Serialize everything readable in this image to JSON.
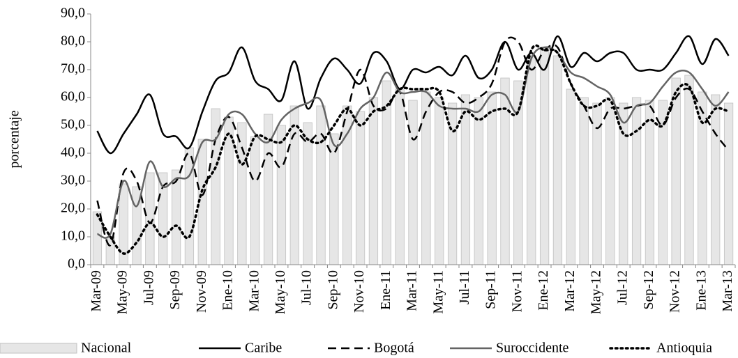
{
  "chart_data": {
    "type": "bar",
    "y_label": "porcentaje",
    "categories": [
      "Mar-09",
      null,
      "May-09",
      null,
      "Jul-09",
      null,
      "Sep-09",
      null,
      "Nov-09",
      null,
      "Ene-10",
      null,
      "Mar-10",
      null,
      "May-10",
      null,
      "Jul-10",
      null,
      "Sep-10",
      null,
      "Nov-10",
      null,
      "Ene-11",
      null,
      "Mar-11",
      null,
      "May-11",
      null,
      "Jul-11",
      null,
      "Sep-11",
      null,
      "Nov-11",
      null,
      "Ene-12",
      null,
      "Mar-12",
      null,
      "May-12",
      null,
      "Jul-12",
      null,
      "Sep-12",
      null,
      "Nov-12",
      null,
      "Ene-13",
      null,
      "Mar-13"
    ],
    "ylim": [
      0,
      90
    ],
    "yticks": [
      {
        "value": 0,
        "label": "0,0"
      },
      {
        "value": 10,
        "label": "10,0"
      },
      {
        "value": 20,
        "label": "20,0"
      },
      {
        "value": 30,
        "label": "30,0"
      },
      {
        "value": 40,
        "label": "40,0"
      },
      {
        "value": 50,
        "label": "50,0"
      },
      {
        "value": 60,
        "label": "60,0"
      },
      {
        "value": 70,
        "label": "70,0"
      },
      {
        "value": 80,
        "label": "80,0"
      },
      {
        "value": 90,
        "label": "90,0"
      }
    ],
    "legend": "bottom",
    "series": [
      {
        "name": "Nacional",
        "type": "bar",
        "color": "#e6e6e6",
        "values": [
          19,
          10,
          29,
          28,
          33,
          33,
          34,
          42,
          45,
          56,
          53,
          51,
          46,
          54,
          50,
          57,
          51,
          57,
          47,
          57,
          55,
          60,
          66,
          63,
          59,
          62,
          60,
          58,
          61,
          60,
          62,
          67,
          66,
          75,
          77,
          75,
          63,
          60,
          58,
          60,
          58,
          60,
          59,
          59,
          67,
          68,
          62,
          61,
          58
        ]
      },
      {
        "name": "Caribe",
        "type": "line",
        "color": "#000000",
        "dash": "solid",
        "values": [
          48,
          40,
          47,
          54,
          61,
          47,
          46,
          42,
          55,
          66,
          69,
          78,
          66,
          63,
          59,
          73,
          56,
          67,
          74,
          70,
          65,
          76,
          73,
          63,
          70,
          69,
          71,
          68,
          75,
          67,
          70,
          80,
          70,
          76,
          70,
          82,
          71,
          76,
          73,
          76,
          76,
          70,
          70,
          70,
          76,
          82,
          72,
          81,
          75
        ]
      },
      {
        "name": "Bogotá",
        "type": "line",
        "color": "#000000",
        "dash": "dashed",
        "values": [
          23,
          7,
          33,
          30,
          15,
          28,
          30,
          40,
          25,
          45,
          53,
          42,
          30,
          40,
          35,
          47,
          44,
          47,
          40,
          55,
          70,
          57,
          56,
          62,
          45,
          55,
          62,
          62,
          58,
          60,
          65,
          80,
          80,
          70,
          77,
          78,
          65,
          57,
          49,
          56,
          56,
          57,
          57,
          50,
          60,
          63,
          55,
          47,
          41
        ]
      },
      {
        "name": "Suroccidente",
        "type": "line",
        "color": "#646464",
        "dash": "solid",
        "values": [
          11,
          11,
          30,
          21,
          37,
          28,
          31,
          32,
          44,
          45,
          54,
          54,
          47,
          44,
          52,
          56,
          58,
          59,
          43,
          47,
          56,
          60,
          69,
          62,
          62,
          62,
          57,
          56,
          56,
          55,
          61,
          61,
          55,
          74,
          78,
          76,
          69,
          67,
          64,
          61,
          51,
          57,
          58,
          64,
          69,
          69,
          63,
          57,
          62
        ]
      },
      {
        "name": "Antioquia",
        "type": "line",
        "color": "#000000",
        "dash": "dotted",
        "values": [
          18,
          10,
          4,
          8,
          15,
          10,
          14,
          10,
          27,
          35,
          47,
          36,
          46,
          45,
          44,
          50,
          45,
          44,
          50,
          56,
          50,
          55,
          57,
          63,
          63,
          63,
          62,
          48,
          55,
          52,
          55,
          56,
          55,
          77,
          77,
          76,
          65,
          57,
          57,
          59,
          47,
          48,
          52,
          50,
          62,
          64,
          51,
          56,
          55
        ]
      }
    ]
  }
}
